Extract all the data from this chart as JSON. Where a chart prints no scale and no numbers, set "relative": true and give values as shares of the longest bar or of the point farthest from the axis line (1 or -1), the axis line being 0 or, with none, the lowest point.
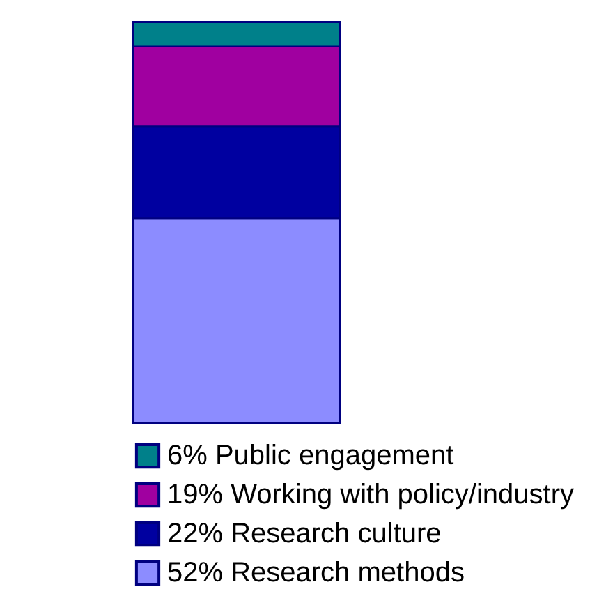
{
  "chart_data": {
    "type": "bar",
    "stacked": true,
    "relative": true,
    "categories": [
      null
    ],
    "legend": "bottom",
    "series": [
      {
        "name": "52%  Research methods",
        "color": "#8c8cff",
        "values": [
          0.51
        ]
      },
      {
        "name": "22%  Research culture",
        "color": "#0000a0",
        "values": [
          0.23
        ]
      },
      {
        "name": "19%  Working with policy/industry",
        "color": "#a000a0",
        "values": [
          0.2
        ]
      },
      {
        "name": "6%  Public engagement",
        "color": "#00808a",
        "values": [
          0.06
        ]
      }
    ]
  }
}
